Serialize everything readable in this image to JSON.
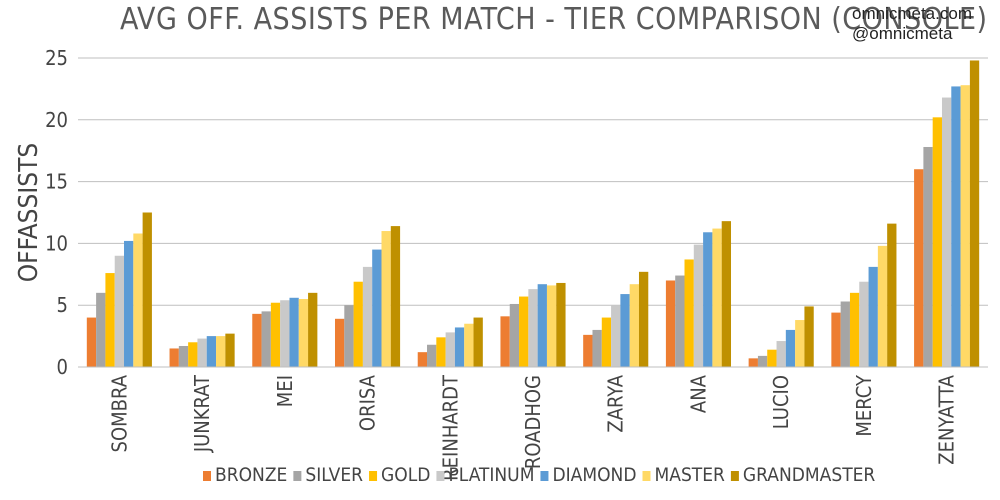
{
  "title": "AVG OFF. ASSISTS PER MATCH - TIER COMPARISON (CONSOLE)",
  "brand": {
    "site": "omnicmeta.com",
    "handle": "@omnicmeta"
  },
  "chart_data": {
    "type": "bar",
    "title": "AVG OFF. ASSISTS PER MATCH - TIER COMPARISON (CONSOLE)",
    "ylabel": "OFFASSISTS",
    "xlabel": "",
    "ylim": [
      0,
      25
    ],
    "yticks": [
      0,
      5,
      10,
      15,
      20,
      25
    ],
    "grid": true,
    "legend_position": "bottom",
    "categories": [
      "SOMBRA",
      "JUNKRAT",
      "MEI",
      "ORISA",
      "REINHARDT",
      "ROADHOG",
      "ZARYA",
      "ANA",
      "LUCIO",
      "MERCY",
      "ZENYATTA"
    ],
    "series": [
      {
        "name": "BRONZE",
        "color": "#ed7d31",
        "values": [
          4.0,
          1.5,
          4.3,
          3.9,
          1.2,
          4.1,
          2.6,
          7.0,
          0.7,
          4.4,
          16.0
        ]
      },
      {
        "name": "SILVER",
        "color": "#a5a5a5",
        "values": [
          6.0,
          1.7,
          4.5,
          5.0,
          1.8,
          5.1,
          3.0,
          7.4,
          0.9,
          5.3,
          17.8
        ]
      },
      {
        "name": "GOLD",
        "color": "#ffc000",
        "values": [
          7.6,
          2.0,
          5.2,
          6.9,
          2.4,
          5.7,
          4.0,
          8.7,
          1.4,
          6.0,
          20.2
        ]
      },
      {
        "name": "PLATINUM",
        "color": "#c9c9c9",
        "values": [
          9.0,
          2.3,
          5.4,
          8.1,
          2.8,
          6.3,
          5.0,
          9.9,
          2.1,
          6.9,
          21.8
        ]
      },
      {
        "name": "DIAMOND",
        "color": "#5b9bd5",
        "values": [
          10.2,
          2.5,
          5.6,
          9.5,
          3.2,
          6.7,
          5.9,
          10.9,
          3.0,
          8.1,
          22.7
        ]
      },
      {
        "name": "MASTER",
        "color": "#ffd966",
        "values": [
          10.8,
          2.5,
          5.5,
          11.0,
          3.5,
          6.6,
          6.7,
          11.2,
          3.8,
          9.8,
          22.8
        ]
      },
      {
        "name": "GRANDMASTER",
        "color": "#bf9000",
        "values": [
          12.5,
          2.7,
          6.0,
          11.4,
          4.0,
          6.8,
          7.7,
          11.8,
          4.9,
          11.6,
          24.8
        ]
      }
    ]
  }
}
